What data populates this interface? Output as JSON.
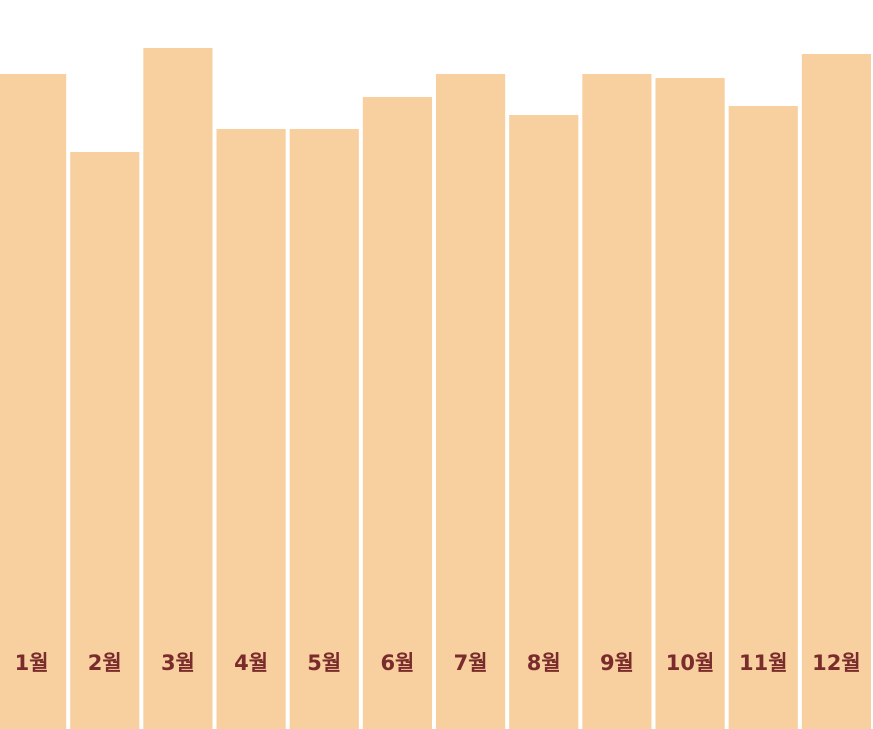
{
  "chart_data": {
    "type": "bar",
    "categories": [
      "1월",
      "2월",
      "3월",
      "4월",
      "5월",
      "6월",
      "7월",
      "8월",
      "9월",
      "10월",
      "11월",
      "12월"
    ],
    "values": [
      655,
      577,
      681,
      600,
      600,
      632,
      655,
      614,
      655,
      651,
      623,
      675
    ],
    "title": "",
    "xlabel": "",
    "ylabel": "",
    "ylim": [
      0,
      729
    ],
    "grid": false,
    "legend": "none"
  },
  "colors": {
    "bar": "#f8cf9f",
    "label": "#7a2b2b",
    "background": "#ffffff"
  }
}
